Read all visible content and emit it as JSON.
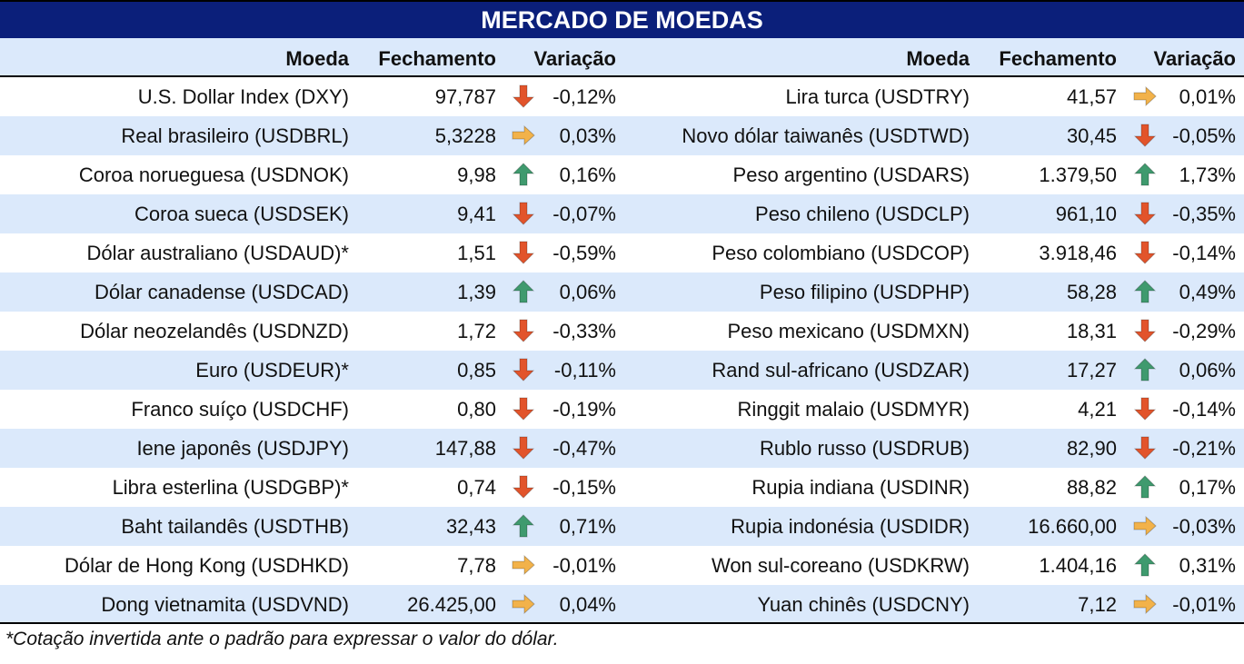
{
  "title": "MERCADO DE MOEDAS",
  "headers": {
    "left": {
      "moeda": "Moeda",
      "fechamento": "Fechamento",
      "variacao": "Variação"
    },
    "right": {
      "moeda": "Moeda",
      "fechamento": "Fechamento",
      "variacao": "Variação"
    }
  },
  "colors": {
    "title_bg": "#0b1f7a",
    "row_shade": "#dbe9fb",
    "up": "#3f9a6e",
    "down": "#e2542b",
    "flat": "#f2b24a"
  },
  "left_rows": [
    {
      "name": "U.S. Dollar Index (DXY)",
      "close": "97,787",
      "change": "-0,12%",
      "trend": "down"
    },
    {
      "name": "Real brasileiro (USDBRL)",
      "close": "5,3228",
      "change": "0,03%",
      "trend": "flat"
    },
    {
      "name": "Coroa norueguesa (USDNOK)",
      "close": "9,98",
      "change": "0,16%",
      "trend": "up"
    },
    {
      "name": "Coroa sueca (USDSEK)",
      "close": "9,41",
      "change": "-0,07%",
      "trend": "down"
    },
    {
      "name": "Dólar australiano (USDAUD)*",
      "close": "1,51",
      "change": "-0,59%",
      "trend": "down"
    },
    {
      "name": "Dólar canadense (USDCAD)",
      "close": "1,39",
      "change": "0,06%",
      "trend": "up"
    },
    {
      "name": "Dólar neozelandês (USDNZD)",
      "close": "1,72",
      "change": "-0,33%",
      "trend": "down"
    },
    {
      "name": "Euro (USDEUR)*",
      "close": "0,85",
      "change": "-0,11%",
      "trend": "down"
    },
    {
      "name": "Franco suíço (USDCHF)",
      "close": "0,80",
      "change": "-0,19%",
      "trend": "down"
    },
    {
      "name": "Iene japonês (USDJPY)",
      "close": "147,88",
      "change": "-0,47%",
      "trend": "down"
    },
    {
      "name": "Libra esterlina (USDGBP)*",
      "close": "0,74",
      "change": "-0,15%",
      "trend": "down"
    },
    {
      "name": "Baht tailandês (USDTHB)",
      "close": "32,43",
      "change": "0,71%",
      "trend": "up"
    },
    {
      "name": "Dólar de Hong Kong (USDHKD)",
      "close": "7,78",
      "change": "-0,01%",
      "trend": "flat"
    },
    {
      "name": "Dong vietnamita (USDVND)",
      "close": "26.425,00",
      "change": "0,04%",
      "trend": "flat"
    }
  ],
  "right_rows": [
    {
      "name": "Lira turca (USDTRY)",
      "close": "41,57",
      "change": "0,01%",
      "trend": "flat"
    },
    {
      "name": "Novo dólar taiwanês (USDTWD)",
      "close": "30,45",
      "change": "-0,05%",
      "trend": "down"
    },
    {
      "name": "Peso argentino (USDARS)",
      "close": "1.379,50",
      "change": "1,73%",
      "trend": "up"
    },
    {
      "name": "Peso chileno (USDCLP)",
      "close": "961,10",
      "change": "-0,35%",
      "trend": "down"
    },
    {
      "name": "Peso colombiano (USDCOP)",
      "close": "3.918,46",
      "change": "-0,14%",
      "trend": "down"
    },
    {
      "name": "Peso filipino (USDPHP)",
      "close": "58,28",
      "change": "0,49%",
      "trend": "up"
    },
    {
      "name": "Peso mexicano (USDMXN)",
      "close": "18,31",
      "change": "-0,29%",
      "trend": "down"
    },
    {
      "name": "Rand sul-africano (USDZAR)",
      "close": "17,27",
      "change": "0,06%",
      "trend": "up"
    },
    {
      "name": "Ringgit malaio (USDMYR)",
      "close": "4,21",
      "change": "-0,14%",
      "trend": "down"
    },
    {
      "name": "Rublo russo (USDRUB)",
      "close": "82,90",
      "change": "-0,21%",
      "trend": "down"
    },
    {
      "name": "Rupia indiana (USDINR)",
      "close": "88,82",
      "change": "0,17%",
      "trend": "up"
    },
    {
      "name": "Rupia indonésia (USDIDR)",
      "close": "16.660,00",
      "change": "-0,03%",
      "trend": "flat"
    },
    {
      "name": "Won sul-coreano (USDKRW)",
      "close": "1.404,16",
      "change": "0,31%",
      "trend": "up"
    },
    {
      "name": "Yuan chinês (USDCNY)",
      "close": "7,12",
      "change": "-0,01%",
      "trend": "flat"
    }
  ],
  "footnote": "*Cotação invertida ante o padrão para expressar o valor do dólar."
}
